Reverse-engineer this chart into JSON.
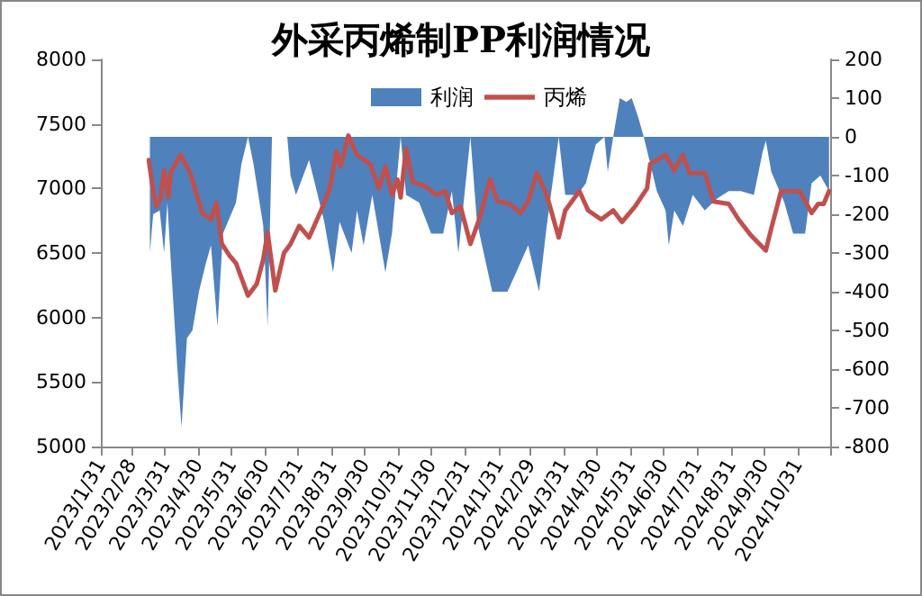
{
  "chart_data": {
    "type": "line",
    "title": "外采丙烯制PP利润情况",
    "legend": "top",
    "grid": false,
    "marker": "none",
    "xlim": [
      "2023-01-31",
      "2024-11-30"
    ],
    "xticks": [
      {
        "value": "2023-01-31",
        "label": "2023/1/31"
      },
      {
        "value": "2023-02-28",
        "label": "2023/2/28"
      },
      {
        "value": "2023-03-31",
        "label": "2023/3/31"
      },
      {
        "value": "2023-04-30",
        "label": "2023/4/30"
      },
      {
        "value": "2023-05-31",
        "label": "2023/5/31"
      },
      {
        "value": "2023-06-30",
        "label": "2023/6/30"
      },
      {
        "value": "2023-07-31",
        "label": "2023/7/31"
      },
      {
        "value": "2023-08-31",
        "label": "2023/8/31"
      },
      {
        "value": "2023-09-30",
        "label": "2023/9/30"
      },
      {
        "value": "2023-10-31",
        "label": "2023/10/31"
      },
      {
        "value": "2023-11-30",
        "label": "2023/11/30"
      },
      {
        "value": "2023-12-31",
        "label": "2023/12/31"
      },
      {
        "value": "2024-01-31",
        "label": "2024/1/31"
      },
      {
        "value": "2024-02-29",
        "label": "2024/2/29"
      },
      {
        "value": "2024-03-31",
        "label": "2024/3/31"
      },
      {
        "value": "2024-04-30",
        "label": "2024/4/30"
      },
      {
        "value": "2024-05-31",
        "label": "2024/5/31"
      },
      {
        "value": "2024-06-30",
        "label": "2024/6/30"
      },
      {
        "value": "2024-07-31",
        "label": "2024/7/31"
      },
      {
        "value": "2024-08-31",
        "label": "2024/8/31"
      },
      {
        "value": "2024-09-30",
        "label": "2024/9/30"
      },
      {
        "value": "2024-10-31",
        "label": "2024/10/31"
      },
      {
        "value": "2024-11-30",
        "label": null
      }
    ],
    "ylim": [
      5000,
      8000
    ],
    "yticks": [
      5000,
      5500,
      6000,
      6500,
      7000,
      7500,
      8000
    ],
    "y2lim": [
      -800,
      200
    ],
    "y2ticks": [
      -800,
      -700,
      -600,
      -500,
      -400,
      -300,
      -200,
      -100,
      0,
      100,
      200
    ],
    "series": [
      {
        "name": "利润",
        "type": "area",
        "axis": "y2",
        "color": "#4f81bd",
        "x": [
          "2023-03-17",
          "2023-03-20",
          "2023-03-26",
          "2023-03-30",
          "2023-04-02",
          "2023-04-06",
          "2023-04-11",
          "2023-04-15",
          "2023-04-20",
          "2023-04-25",
          "2023-05-01",
          "2023-05-07",
          "2023-05-12",
          "2023-05-18",
          "2023-05-23",
          "2023-06-04",
          "2023-06-09",
          "2023-06-15",
          "2023-06-20",
          "2023-06-29",
          "2023-07-03",
          "2023-07-07",
          "2023-07-21",
          "2023-07-24",
          "2023-07-29",
          "2023-08-10",
          "2023-08-24",
          "2023-09-01",
          "2023-09-07",
          "2023-09-18",
          "2023-09-23",
          "2023-09-29",
          "2023-10-07",
          "2023-10-19",
          "2023-10-25",
          "2023-11-02",
          "2023-11-07",
          "2023-11-19",
          "2023-11-30",
          "2023-12-11",
          "2023-12-19",
          "2023-12-25",
          "2024-01-05",
          "2024-01-11",
          "2024-01-25",
          "2024-02-08",
          "2024-02-16",
          "2024-02-27",
          "2024-03-08",
          "2024-03-15",
          "2024-03-26",
          "2024-04-01",
          "2024-04-12",
          "2024-04-20",
          "2024-04-29",
          "2024-05-07",
          "2024-05-10",
          "2024-05-15",
          "2024-05-21",
          "2024-05-27",
          "2024-06-01",
          "2024-06-07",
          "2024-06-12",
          "2024-06-18",
          "2024-06-24",
          "2024-07-02",
          "2024-07-05",
          "2024-07-10",
          "2024-07-18",
          "2024-07-27",
          "2024-08-07",
          "2024-08-18",
          "2024-08-29",
          "2024-09-09",
          "2024-09-21",
          "2024-09-29",
          "2024-10-02",
          "2024-10-07",
          "2024-10-19",
          "2024-10-27",
          "2024-11-07",
          "2024-11-13",
          "2024-11-21",
          "2024-11-29"
        ],
        "values": [
          -300,
          -200,
          -190,
          -300,
          -170,
          -360,
          -590,
          -750,
          -520,
          -500,
          -400,
          -330,
          -280,
          -490,
          -250,
          -170,
          -70,
          0,
          -70,
          -230,
          -490,
          0,
          0,
          -100,
          -150,
          -60,
          -220,
          -350,
          -220,
          -300,
          -190,
          -280,
          -150,
          -350,
          -250,
          0,
          -150,
          -170,
          -250,
          -250,
          -140,
          -300,
          0,
          -220,
          -400,
          -400,
          -350,
          -280,
          -400,
          -230,
          0,
          -150,
          -150,
          -120,
          -20,
          0,
          -90,
          0,
          100,
          90,
          100,
          50,
          0,
          -70,
          -140,
          -190,
          -280,
          -190,
          -230,
          -150,
          -190,
          -160,
          -140,
          -140,
          -150,
          -40,
          -10,
          -90,
          -170,
          -250,
          -250,
          -120,
          -100,
          -140
        ]
      },
      {
        "name": "丙烯",
        "type": "line",
        "axis": "y",
        "color": "#c0504d",
        "x": [
          "2023-03-16",
          "2023-03-20",
          "2023-03-23",
          "2023-03-27",
          "2023-03-30",
          "2023-04-03",
          "2023-04-05",
          "2023-04-14",
          "2023-04-23",
          "2023-04-28",
          "2023-05-04",
          "2023-05-12",
          "2023-05-17",
          "2023-05-22",
          "2023-05-29",
          "2023-06-04",
          "2023-06-15",
          "2023-06-23",
          "2023-06-29",
          "2023-07-03",
          "2023-07-10",
          "2023-07-18",
          "2023-07-24",
          "2023-08-01",
          "2023-08-10",
          "2023-08-21",
          "2023-08-29",
          "2023-09-04",
          "2023-09-08",
          "2023-09-15",
          "2023-09-23",
          "2023-10-05",
          "2023-10-13",
          "2023-10-19",
          "2023-10-25",
          "2023-10-30",
          "2023-11-02",
          "2023-11-07",
          "2023-11-13",
          "2023-11-24",
          "2023-12-05",
          "2023-12-13",
          "2023-12-19",
          "2023-12-27",
          "2024-01-05",
          "2024-01-13",
          "2024-01-23",
          "2024-01-30",
          "2024-02-10",
          "2024-02-20",
          "2024-02-27",
          "2024-03-06",
          "2024-03-15",
          "2024-03-26",
          "2024-04-01",
          "2024-04-14",
          "2024-04-22",
          "2024-05-04",
          "2024-05-15",
          "2024-05-23",
          "2024-06-04",
          "2024-06-15",
          "2024-06-18",
          "2024-07-02",
          "2024-07-10",
          "2024-07-18",
          "2024-07-24",
          "2024-08-07",
          "2024-08-15",
          "2024-08-29",
          "2024-09-07",
          "2024-09-18",
          "2024-10-02",
          "2024-10-07",
          "2024-10-16",
          "2024-11-02",
          "2024-11-13",
          "2024-11-19",
          "2024-11-24",
          "2024-11-29"
        ],
        "values": [
          7220,
          6980,
          6860,
          6930,
          7140,
          6930,
          7120,
          7260,
          7120,
          6980,
          6810,
          6760,
          6890,
          6570,
          6480,
          6420,
          6170,
          6260,
          6450,
          6660,
          6210,
          6500,
          6570,
          6710,
          6620,
          6830,
          7000,
          7290,
          7170,
          7410,
          7260,
          7190,
          7000,
          7170,
          6950,
          7070,
          6930,
          7310,
          7050,
          7020,
          6950,
          6980,
          6810,
          6860,
          6570,
          6760,
          7070,
          6900,
          6880,
          6810,
          6900,
          7120,
          6950,
          6620,
          6830,
          6980,
          6830,
          6760,
          6830,
          6740,
          6860,
          7000,
          7190,
          7260,
          7140,
          7260,
          7120,
          7120,
          6900,
          6880,
          6760,
          6640,
          6520,
          6690,
          6980,
          6980,
          6810,
          6880,
          6880,
          6980
        ]
      }
    ]
  }
}
